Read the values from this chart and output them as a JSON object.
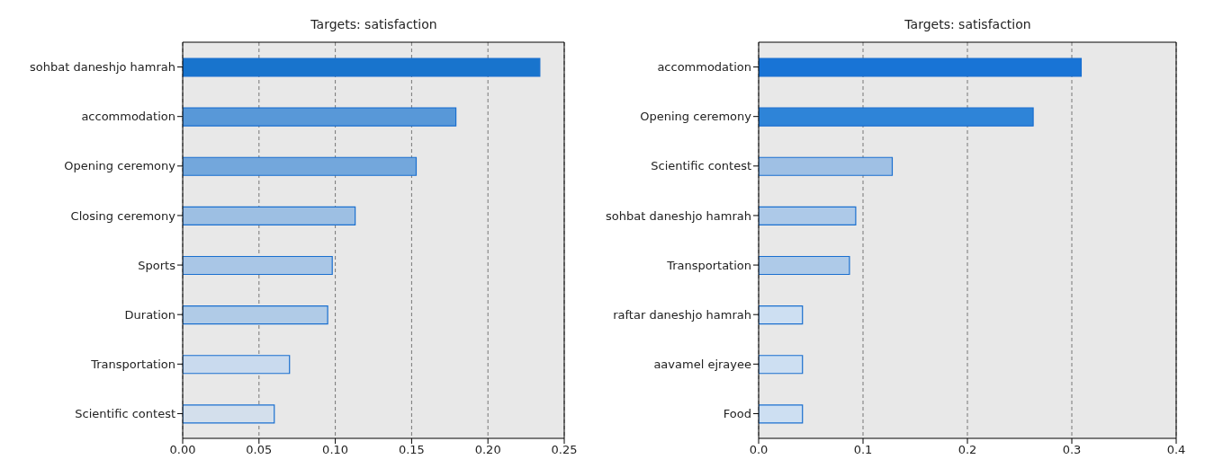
{
  "chart_data": [
    {
      "type": "bar",
      "orientation": "horizontal",
      "title": "Targets: satisfaction",
      "categories": [
        "sohbat daneshjo hamrah",
        "accommodation",
        "Opening ceremony",
        "Closing ceremony",
        "Sports",
        "Duration",
        "Transportation",
        "Scientific  contest"
      ],
      "values": [
        0.234,
        0.179,
        0.153,
        0.113,
        0.098,
        0.095,
        0.07,
        0.06
      ],
      "colors": [
        "#1874cd",
        "#5898d8",
        "#73a7dc",
        "#9dbfe3",
        "#a9c6e6",
        "#b0cbe7",
        "#c9daee",
        "#d3dfec"
      ],
      "xlim": [
        0,
        0.25
      ],
      "xticks": [
        {
          "value": 0,
          "label": "0.00"
        },
        {
          "value": 0.05,
          "label": "0.05"
        },
        {
          "value": 0.1,
          "label": "0.10"
        },
        {
          "value": 0.15,
          "label": "0.15"
        },
        {
          "value": 0.2,
          "label": "0.20"
        },
        {
          "value": 0.25,
          "label": "0.25"
        }
      ],
      "grid": "x"
    },
    {
      "type": "bar",
      "orientation": "horizontal",
      "title": "Targets: satisfaction",
      "categories": [
        "accommodation",
        "Opening ceremony",
        "Scientific  contest",
        "sohbat daneshjo hamrah",
        "Transportation",
        "raftar daneshjo hamrah",
        "aavamel ejrayee",
        "Food"
      ],
      "values": [
        0.309,
        0.263,
        0.128,
        0.093,
        0.087,
        0.042,
        0.042,
        0.042
      ],
      "colors": [
        "#1874d6",
        "#2e84d8",
        "#9fc0e4",
        "#adc9e8",
        "#aecae8",
        "#cddff2",
        "#cddff2",
        "#cddff2"
      ],
      "xlim": [
        0,
        0.4
      ],
      "xticks": [
        {
          "value": 0,
          "label": "0.0"
        },
        {
          "value": 0.1,
          "label": "0.1"
        },
        {
          "value": 0.2,
          "label": "0.2"
        },
        {
          "value": 0.3,
          "label": "0.3"
        },
        {
          "value": 0.4,
          "label": "0.4"
        }
      ],
      "grid": "x"
    }
  ]
}
